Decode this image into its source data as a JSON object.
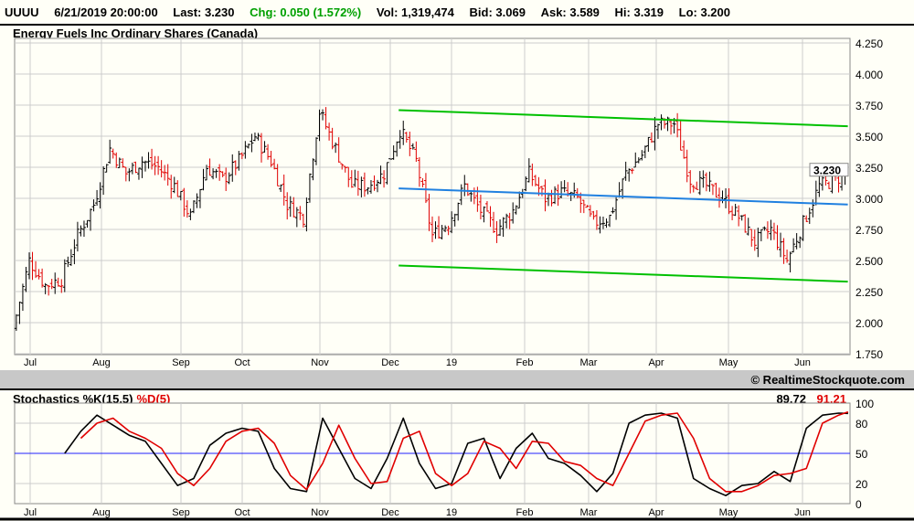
{
  "header": {
    "symbol": "UUUU",
    "datetime": "6/21/2019 20:00:00",
    "last": "Last: 3.230",
    "chg": "Chg: 0.050 (1.572%)",
    "vol": "Vol: 1,319,474",
    "bid": "Bid: 3.069",
    "ask": "Ask: 3.589",
    "hi": "Hi: 3.319",
    "lo": "Lo: 3.200"
  },
  "copyright": "© RealtimeStockquote.com",
  "colors": {
    "up": "#000000",
    "down": "#e00000",
    "trend_upper": "#00c000",
    "trend_lower": "#00c000",
    "trend_mid": "#2080e0",
    "k": "#000000",
    "d": "#e00000",
    "midline": "#2020ff",
    "change": "#00a000"
  },
  "chart_data": [
    {
      "type": "ohlc",
      "title": "Energy Fuels Inc Ordinary Shares (Canada)",
      "ylim": [
        1.75,
        4.25
      ],
      "y_ticks": [
        "4.250",
        "4.000",
        "3.750",
        "3.500",
        "3.250",
        "3.000",
        "2.750",
        "2.500",
        "2.250",
        "2.000",
        "1.750"
      ],
      "x_ticks": [
        "Jul",
        "Aug",
        "Sep",
        "Oct",
        "Nov",
        "Dec",
        "19",
        "Feb",
        "Mar",
        "Apr",
        "May",
        "Jun"
      ],
      "last_label": "3.230",
      "grid": true,
      "weekly_start": "2018-06-25",
      "weekly_close_approx": [
        1.95,
        2.5,
        2.3,
        2.35,
        2.7,
        2.95,
        3.4,
        3.2,
        3.3,
        3.25,
        3.1,
        2.85,
        3.25,
        3.15,
        3.3,
        3.5,
        3.3,
        2.95,
        2.85,
        3.7,
        3.4,
        3.1,
        3.1,
        3.2,
        3.55,
        3.3,
        2.7,
        2.8,
        3.1,
        2.9,
        2.75,
        2.9,
        3.2,
        3.0,
        3.05,
        3.0,
        2.8,
        2.85,
        3.2,
        3.35,
        3.6,
        3.6,
        3.15,
        3.1,
        3.0,
        2.85,
        2.65,
        2.75,
        2.5,
        2.8,
        3.1,
        3.15,
        3.23
      ],
      "trendlines": [
        {
          "role": "upper",
          "start": [
            "2018-12-08",
            3.71
          ],
          "end": [
            "2019-06-21",
            3.58
          ]
        },
        {
          "role": "mid",
          "start": [
            "2018-12-08",
            3.08
          ],
          "end": [
            "2019-06-21",
            2.95
          ]
        },
        {
          "role": "lower",
          "start": [
            "2018-12-08",
            2.46
          ],
          "end": [
            "2019-06-21",
            2.33
          ]
        }
      ]
    },
    {
      "type": "line",
      "title": "Stochastics %K(15,5)",
      "title_d": "%D(5)",
      "ylim": [
        0,
        100
      ],
      "y_ticks": [
        "100",
        "80",
        "50",
        "20",
        "0"
      ],
      "midline": 50,
      "x_ticks": [
        "Jul",
        "Aug",
        "Sep",
        "Oct",
        "Nov",
        "Dec",
        "19",
        "Feb",
        "Mar",
        "Apr",
        "May",
        "Jun"
      ],
      "k_last": "89.72",
      "d_last": "91.21",
      "weekly_start": "2018-06-25",
      "k": [
        null,
        null,
        null,
        50,
        72,
        88,
        78,
        68,
        62,
        40,
        18,
        25,
        58,
        70,
        75,
        72,
        35,
        15,
        12,
        85,
        55,
        25,
        15,
        45,
        85,
        40,
        15,
        20,
        60,
        65,
        25,
        55,
        70,
        45,
        40,
        28,
        12,
        30,
        80,
        88,
        90,
        85,
        25,
        15,
        8,
        18,
        20,
        32,
        22,
        75,
        88,
        90,
        89.72
      ],
      "d": [
        null,
        null,
        null,
        null,
        65,
        80,
        85,
        72,
        65,
        55,
        30,
        18,
        35,
        62,
        72,
        75,
        60,
        28,
        14,
        40,
        78,
        45,
        20,
        22,
        65,
        72,
        30,
        18,
        30,
        62,
        55,
        35,
        62,
        60,
        42,
        38,
        25,
        18,
        50,
        82,
        88,
        90,
        65,
        25,
        12,
        12,
        18,
        28,
        30,
        35,
        80,
        88,
        91.21
      ]
    }
  ]
}
